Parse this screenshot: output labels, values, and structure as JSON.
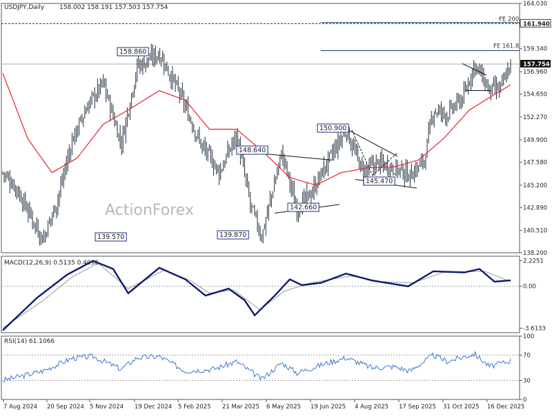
{
  "header": {
    "symbol": "USDJPY,Daily",
    "ohlc": "158.002 158.191 157.503 157.754"
  },
  "watermark": "ActionForex",
  "colors": {
    "candle": "#1f2b3a",
    "ma": "#e8202a",
    "macd": "#0d1870",
    "signal": "#9a9a9a",
    "rsi": "#3a78c8",
    "hline": "#1a3a66",
    "label_border": "#1a2a8a"
  },
  "chart_data": [
    {
      "type": "candlestick",
      "name": "price",
      "ylim": [
        138.2,
        164.03
      ],
      "y_ticks": [
        "164.030",
        "161.940",
        "159.340",
        "156.960",
        "154.650",
        "152.270",
        "149.900",
        "147.580",
        "145.200",
        "142.890",
        "140.510",
        "138.200"
      ],
      "x_ticks": [
        "7 Aug 2024",
        "20 Sep 2024",
        "5 Nov 2024",
        "19 Dec 2024",
        "5 Feb 2025",
        "21 Mar 2025",
        "6 May 2025",
        "19 Jun 2025",
        "4 Aug 2025",
        "17 Sep 2025",
        "31 Oct 2025",
        "16 Dec 2025"
      ],
      "key_closes": [
        [
          "2024-08-07",
          146.5
        ],
        [
          "2024-08-20",
          145.0
        ],
        [
          "2024-09-16",
          139.57
        ],
        [
          "2024-09-30",
          143.5
        ],
        [
          "2024-10-15",
          149.8
        ],
        [
          "2024-10-31",
          153.5
        ],
        [
          "2024-11-15",
          155.8
        ],
        [
          "2024-12-03",
          149.5
        ],
        [
          "2024-12-19",
          157.5
        ],
        [
          "2025-01-10",
          158.86
        ],
        [
          "2025-01-31",
          154.5
        ],
        [
          "2025-02-20",
          149.5
        ],
        [
          "2025-03-11",
          146.5
        ],
        [
          "2025-03-28",
          150.5
        ],
        [
          "2025-04-11",
          143.0
        ],
        [
          "2025-04-22",
          139.87
        ],
        [
          "2025-05-12",
          148.64
        ],
        [
          "2025-05-27",
          142.66
        ],
        [
          "2025-06-11",
          144.5
        ],
        [
          "2025-06-23",
          146.9
        ],
        [
          "2025-07-15",
          150.9
        ],
        [
          "2025-08-01",
          146.5
        ],
        [
          "2025-08-15",
          147.5
        ],
        [
          "2025-09-01",
          147.0
        ],
        [
          "2025-09-17",
          146.2
        ],
        [
          "2025-10-01",
          147.8
        ],
        [
          "2025-10-10",
          153.0
        ],
        [
          "2025-10-24",
          152.5
        ],
        [
          "2025-11-10",
          154.5
        ],
        [
          "2025-11-20",
          157.8
        ],
        [
          "2025-12-05",
          155.0
        ],
        [
          "2025-12-16",
          155.2
        ],
        [
          "2025-12-26",
          157.754
        ]
      ],
      "moving_average": [
        [
          "2024-08-07",
          156.8
        ],
        [
          "2024-09-01",
          150.0
        ],
        [
          "2024-09-25",
          146.5
        ],
        [
          "2024-10-20",
          148.0
        ],
        [
          "2024-11-15",
          151.5
        ],
        [
          "2024-12-10",
          153.0
        ],
        [
          "2025-01-10",
          155.0
        ],
        [
          "2025-02-05",
          154.0
        ],
        [
          "2025-03-01",
          151.0
        ],
        [
          "2025-03-28",
          151.0
        ],
        [
          "2025-04-25",
          148.5
        ],
        [
          "2025-05-20",
          146.0
        ],
        [
          "2025-06-15",
          145.2
        ],
        [
          "2025-07-10",
          146.5
        ],
        [
          "2025-08-05",
          147.0
        ],
        [
          "2025-09-01",
          147.1
        ],
        [
          "2025-09-25",
          147.8
        ],
        [
          "2025-10-20",
          150.0
        ],
        [
          "2025-11-15",
          153.0
        ],
        [
          "2025-12-10",
          154.6
        ],
        [
          "2025-12-26",
          155.6
        ]
      ],
      "labels": [
        "158.860",
        "139.570",
        "139.870",
        "148.640",
        "142.660",
        "150.900",
        "145.470"
      ],
      "hlines": [
        {
          "label": "FE 200",
          "value": 161.94,
          "tag": "161.940",
          "style": "dashed"
        },
        {
          "label": "FE 161.8",
          "value": 159.14,
          "style": "solid"
        },
        {
          "value": 157.754,
          "style": "solid-gray"
        }
      ],
      "current_price": "157.754"
    },
    {
      "type": "line",
      "name": "macd",
      "title": "MACD(12,26,9) 0.5135 0.4096",
      "ylim": [
        -4.0,
        2.6
      ],
      "y_ticks": [
        "2.2251",
        "0.00",
        "-3.6133"
      ],
      "series": [
        {
          "name": "MACD",
          "points": [
            [
              "2024-08-07",
              -3.8
            ],
            [
              "2024-09-10",
              -1.0
            ],
            [
              "2024-10-10",
              1.0
            ],
            [
              "2024-11-05",
              2.2
            ],
            [
              "2024-11-25",
              1.5
            ],
            [
              "2024-12-10",
              -0.6
            ],
            [
              "2025-01-10",
              1.6
            ],
            [
              "2025-02-05",
              0.6
            ],
            [
              "2025-02-25",
              -0.8
            ],
            [
              "2025-03-20",
              -0.2
            ],
            [
              "2025-04-05",
              -1.2
            ],
            [
              "2025-04-15",
              -2.5
            ],
            [
              "2025-05-05",
              -0.8
            ],
            [
              "2025-05-20",
              0.6
            ],
            [
              "2025-06-01",
              0.1
            ],
            [
              "2025-06-20",
              0.3
            ],
            [
              "2025-07-15",
              1.1
            ],
            [
              "2025-08-10",
              0.5
            ],
            [
              "2025-09-15",
              0.0
            ],
            [
              "2025-10-10",
              1.3
            ],
            [
              "2025-11-10",
              1.2
            ],
            [
              "2025-11-25",
              1.5
            ],
            [
              "2025-12-10",
              0.4
            ],
            [
              "2025-12-26",
              0.5135
            ]
          ]
        },
        {
          "name": "Signal",
          "points": [
            [
              "2024-08-07",
              -3.6
            ],
            [
              "2024-09-15",
              -1.3
            ],
            [
              "2024-10-15",
              0.8
            ],
            [
              "2024-11-10",
              2.0
            ],
            [
              "2024-12-10",
              -0.2
            ],
            [
              "2025-01-15",
              1.4
            ],
            [
              "2025-02-10",
              0.5
            ],
            [
              "2025-03-01",
              -0.6
            ],
            [
              "2025-03-25",
              -0.3
            ],
            [
              "2025-04-20",
              -2.0
            ],
            [
              "2025-05-15",
              -0.4
            ],
            [
              "2025-06-10",
              0.3
            ],
            [
              "2025-07-20",
              0.9
            ],
            [
              "2025-08-20",
              0.4
            ],
            [
              "2025-09-20",
              0.3
            ],
            [
              "2025-10-20",
              1.2
            ],
            [
              "2025-11-30",
              1.3
            ],
            [
              "2025-12-26",
              0.4096
            ]
          ]
        }
      ]
    },
    {
      "type": "line",
      "name": "rsi",
      "title": "RSI(14) 61.1066",
      "ylim": [
        0,
        100
      ],
      "y_ticks": [
        "100",
        "70",
        "30",
        "0"
      ],
      "series": [
        {
          "name": "RSI",
          "points": [
            [
              "2024-08-07",
              30
            ],
            [
              "2024-09-16",
              45
            ],
            [
              "2024-10-15",
              65
            ],
            [
              "2024-11-05",
              68
            ],
            [
              "2024-12-03",
              48
            ],
            [
              "2024-12-19",
              66
            ],
            [
              "2025-01-10",
              68
            ],
            [
              "2025-02-05",
              45
            ],
            [
              "2025-03-05",
              48
            ],
            [
              "2025-03-28",
              60
            ],
            [
              "2025-04-22",
              32
            ],
            [
              "2025-05-12",
              58
            ],
            [
              "2025-05-27",
              42
            ],
            [
              "2025-06-23",
              56
            ],
            [
              "2025-07-15",
              66
            ],
            [
              "2025-08-10",
              50
            ],
            [
              "2025-09-01",
              52
            ],
            [
              "2025-09-17",
              45
            ],
            [
              "2025-10-10",
              70
            ],
            [
              "2025-10-24",
              60
            ],
            [
              "2025-11-20",
              72
            ],
            [
              "2025-12-05",
              52
            ],
            [
              "2025-12-26",
              61.1066
            ]
          ]
        }
      ]
    }
  ]
}
